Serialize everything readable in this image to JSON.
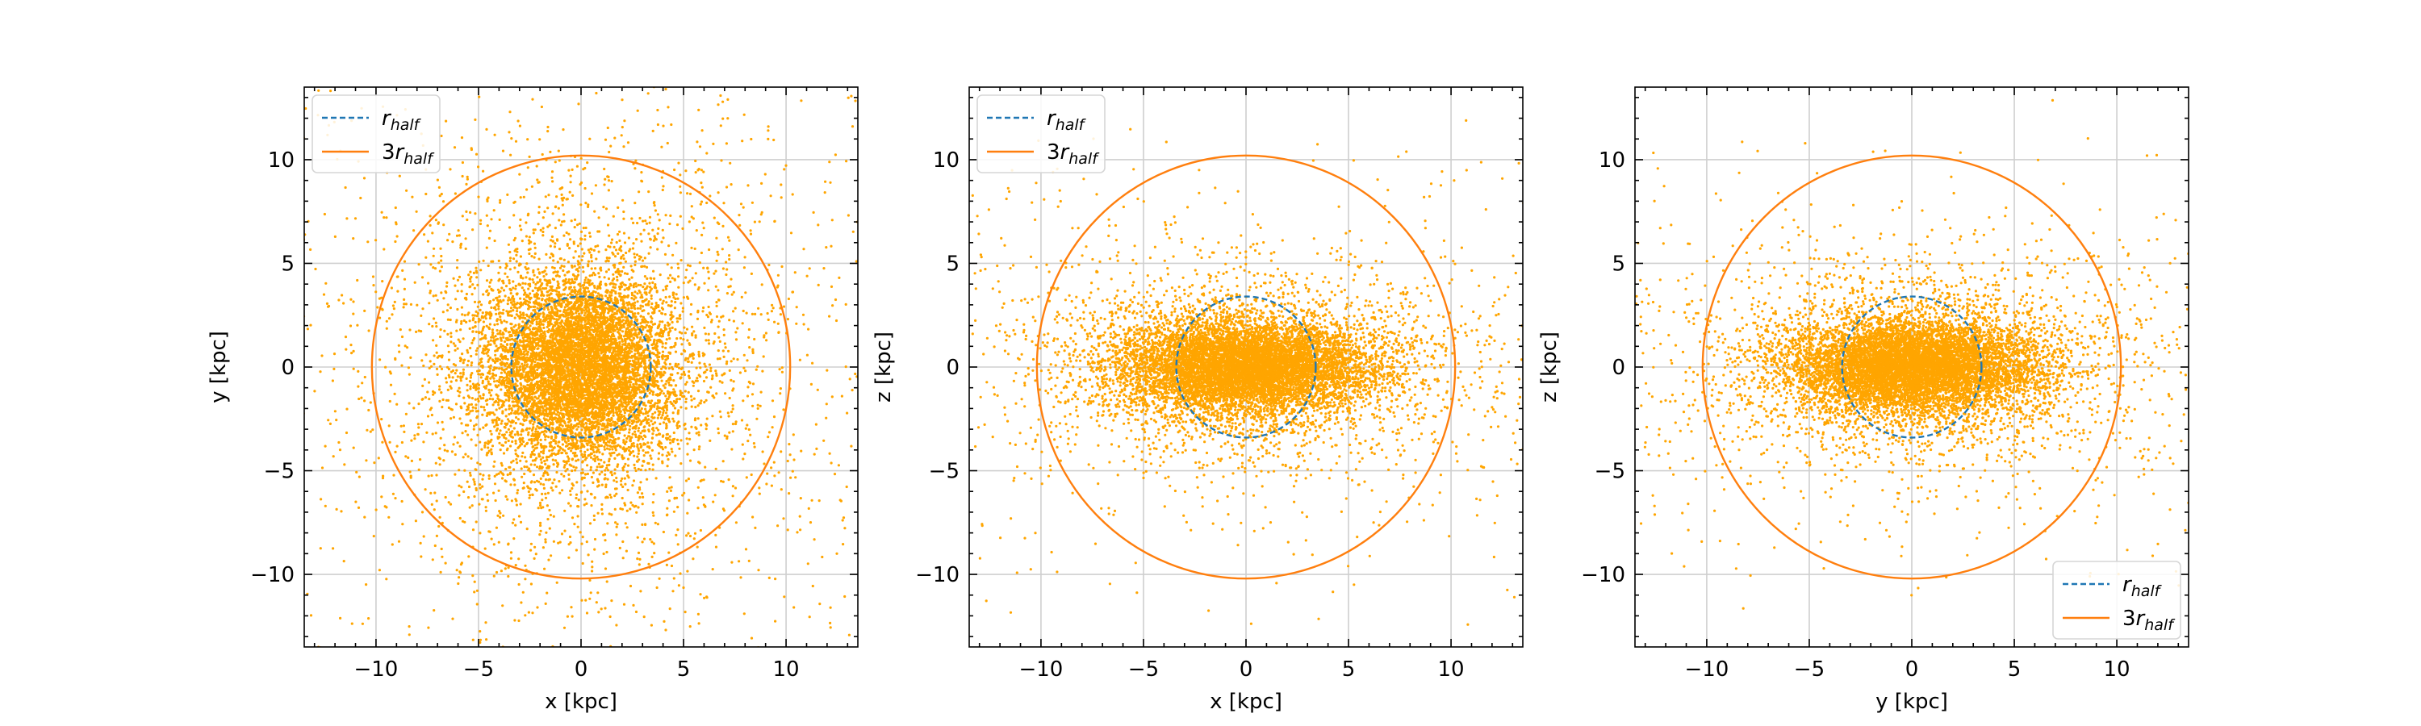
{
  "chart_data": [
    {
      "type": "scatter",
      "xlabel": "x [kpc]",
      "ylabel": "y [kpc]",
      "xlim": [
        -13.5,
        13.5
      ],
      "ylim": [
        -13.5,
        13.5
      ],
      "xticks": [
        -10,
        -5,
        0,
        5,
        10
      ],
      "yticks": [
        -10,
        -5,
        0,
        5,
        10
      ],
      "tick_labels_x": [
        "−10",
        "−5",
        "0",
        "5",
        "10"
      ],
      "tick_labels_y": [
        "−10",
        "−5",
        "0",
        "5",
        "10"
      ],
      "grid": true,
      "legend_position": "top-left",
      "point_color": "#FFA500",
      "distribution": {
        "core_sigma_a": 2.2,
        "core_sigma_b": 2.2,
        "halo_sigma_a": 5.0,
        "halo_sigma_b": 5.0
      },
      "series": [
        {
          "name": "r_half",
          "kind": "circle",
          "radius": 3.4,
          "color": "#1f77b4",
          "style": "dashed"
        },
        {
          "name": "3r_half",
          "kind": "circle",
          "radius": 10.2,
          "color": "#ff7f0e",
          "style": "solid"
        }
      ]
    },
    {
      "type": "scatter",
      "xlabel": "x [kpc]",
      "ylabel": "z [kpc]",
      "xlim": [
        -13.5,
        13.5
      ],
      "ylim": [
        -13.5,
        13.5
      ],
      "xticks": [
        -10,
        -5,
        0,
        5,
        10
      ],
      "yticks": [
        -10,
        -5,
        0,
        5,
        10
      ],
      "tick_labels_x": [
        "−10",
        "−5",
        "0",
        "5",
        "10"
      ],
      "tick_labels_y": [
        "−10",
        "−5",
        "0",
        "5",
        "10"
      ],
      "grid": true,
      "legend_position": "top-left",
      "point_color": "#FFA500",
      "distribution": {
        "core_sigma_a": 3.0,
        "core_sigma_b": 1.1,
        "halo_sigma_a": 5.0,
        "halo_sigma_b": 2.4
      },
      "series": [
        {
          "name": "r_half",
          "kind": "circle",
          "radius": 3.4,
          "color": "#1f77b4",
          "style": "dashed"
        },
        {
          "name": "3r_half",
          "kind": "circle",
          "radius": 10.2,
          "color": "#ff7f0e",
          "style": "solid"
        }
      ]
    },
    {
      "type": "scatter",
      "xlabel": "y [kpc]",
      "ylabel": "z [kpc]",
      "xlim": [
        -13.5,
        13.5
      ],
      "ylim": [
        -13.5,
        13.5
      ],
      "xticks": [
        -10,
        -5,
        0,
        5,
        10
      ],
      "yticks": [
        -10,
        -5,
        0,
        5,
        10
      ],
      "tick_labels_x": [
        "−10",
        "−5",
        "0",
        "5",
        "10"
      ],
      "tick_labels_y": [
        "−10",
        "−5",
        "0",
        "5",
        "10"
      ],
      "grid": true,
      "legend_position": "bottom-right",
      "point_color": "#FFA500",
      "distribution": {
        "core_sigma_a": 3.0,
        "core_sigma_b": 1.1,
        "halo_sigma_a": 5.0,
        "halo_sigma_b": 2.4
      },
      "series": [
        {
          "name": "r_half",
          "kind": "circle",
          "radius": 3.4,
          "color": "#1f77b4",
          "style": "dashed"
        },
        {
          "name": "3r_half",
          "kind": "circle",
          "radius": 10.2,
          "color": "#ff7f0e",
          "style": "solid"
        }
      ]
    }
  ]
}
